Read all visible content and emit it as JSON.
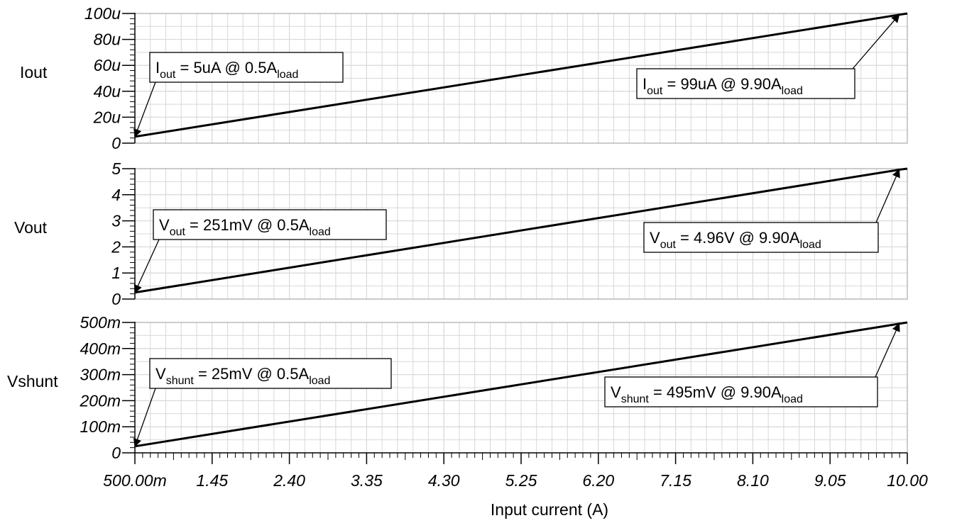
{
  "chart_data": [
    {
      "type": "line",
      "ylabel": "Iout",
      "xlabel": "",
      "xlim": [
        0.5,
        10.0
      ],
      "ylim": [
        0,
        100
      ],
      "ytick_labels": [
        "0",
        "20u",
        "40u",
        "60u",
        "80u",
        "100u"
      ],
      "ytick_values": [
        0,
        20,
        40,
        60,
        80,
        100
      ],
      "grid": true,
      "series": [
        {
          "x": [
            0.5,
            9.9,
            10.0
          ],
          "y": [
            5,
            99,
            100
          ]
        }
      ],
      "annotations": [
        {
          "main": "I",
          "sub": "out",
          "mid": " = 5uA  @  0.5A",
          "sub2": "load",
          "x": 0.5,
          "y": 5
        },
        {
          "main": "I",
          "sub": "out",
          "mid": " = 99uA  @  9.90A",
          "sub2": "load",
          "x": 9.9,
          "y": 99
        }
      ]
    },
    {
      "type": "line",
      "ylabel": "Vout",
      "xlabel": "",
      "xlim": [
        0.5,
        10.0
      ],
      "ylim": [
        0,
        5
      ],
      "ytick_labels": [
        "0",
        "1",
        "2",
        "3",
        "4",
        "5"
      ],
      "ytick_values": [
        0,
        1,
        2,
        3,
        4,
        5
      ],
      "grid": true,
      "series": [
        {
          "x": [
            0.5,
            9.9,
            10.0
          ],
          "y": [
            0.251,
            4.96,
            5.0
          ]
        }
      ],
      "annotations": [
        {
          "main": "V",
          "sub": "out",
          "mid": " = 251mV  @  0.5A",
          "sub2": "load",
          "x": 0.5,
          "y": 0.251
        },
        {
          "main": "V",
          "sub": "out",
          "mid": " = 4.96V  @  9.90A",
          "sub2": "load",
          "x": 9.9,
          "y": 4.96
        }
      ]
    },
    {
      "type": "line",
      "ylabel": "Vshunt",
      "xlabel": "Input current (A)",
      "xlim": [
        0.5,
        10.0
      ],
      "ylim": [
        0,
        500
      ],
      "ytick_labels": [
        "0",
        "100m",
        "200m",
        "300m",
        "400m",
        "500m"
      ],
      "ytick_values": [
        0,
        100,
        200,
        300,
        400,
        500
      ],
      "grid": true,
      "series": [
        {
          "x": [
            0.5,
            9.9,
            10.0
          ],
          "y": [
            25,
            495,
            500
          ]
        }
      ],
      "annotations": [
        {
          "main": "V",
          "sub": "shunt",
          "mid": " = 25mV  @  0.5A",
          "sub2": "load",
          "x": 0.5,
          "y": 25
        },
        {
          "main": "V",
          "sub": "shunt",
          "mid": " = 495mV  @  9.90A",
          "sub2": "load",
          "x": 9.9,
          "y": 495
        }
      ]
    }
  ],
  "x_axis": {
    "tick_labels": [
      "500.00m",
      "1.45",
      "2.40",
      "3.35",
      "4.30",
      "5.25",
      "6.20",
      "7.15",
      "8.10",
      "9.05",
      "10.00"
    ],
    "tick_values": [
      0.5,
      1.45,
      2.4,
      3.35,
      4.3,
      5.25,
      6.2,
      7.15,
      8.1,
      9.05,
      10.0
    ]
  },
  "colors": {
    "line": "#000000",
    "grid": "#d8d8d8",
    "axis": "#000000",
    "background": "#ffffff"
  }
}
